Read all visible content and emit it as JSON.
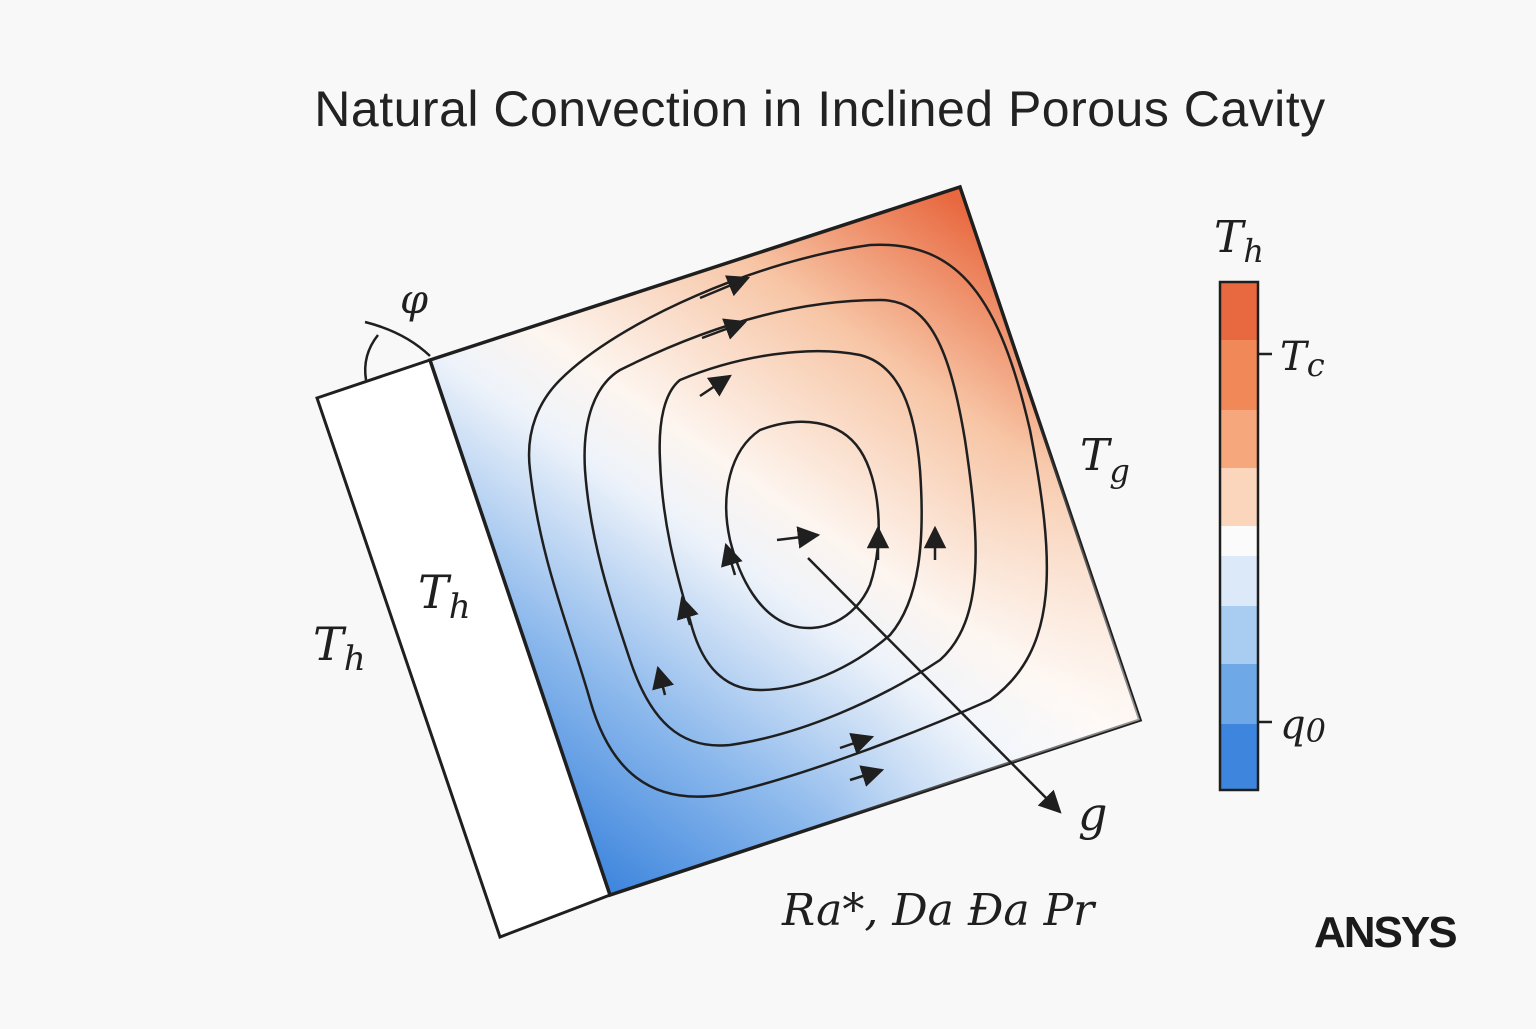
{
  "title": "Natural Convection in Inclined Porous Cavity",
  "labels": {
    "angle": "φ",
    "wall_outer": "T",
    "wall_outer_sub": "h",
    "wall_inner": "T",
    "wall_inner_sub": "h",
    "right_wall": "T",
    "right_wall_sub": "g",
    "gravity": "g",
    "parameters": "Ra*, Da Ða Pr"
  },
  "colorbar": {
    "title": "T",
    "title_sub": "h",
    "tick_top": "T",
    "tick_top_sub": "c",
    "tick_bottom": "q",
    "tick_bottom_sub": "0",
    "hot_color": "#e8683f",
    "cold_color": "#3d85dd"
  },
  "brand": "ANSYS"
}
